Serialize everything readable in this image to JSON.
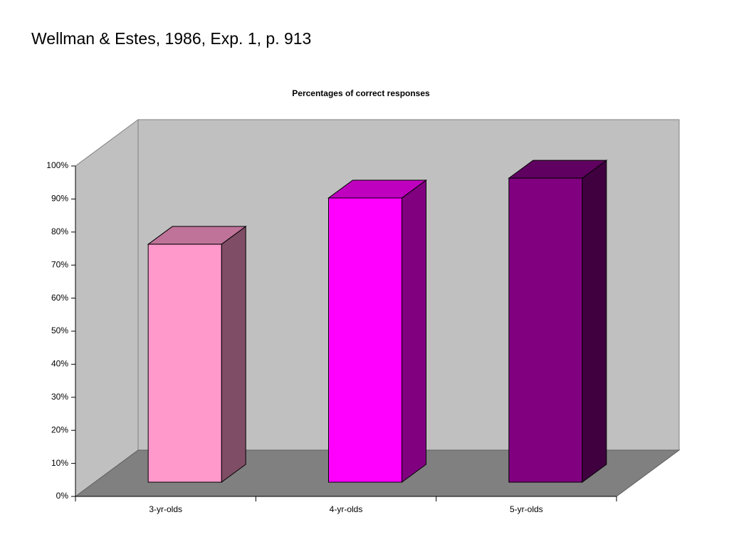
{
  "slide_title": "Wellman & Estes, 1986, Exp. 1, p. 913",
  "chart_data": {
    "type": "bar3d",
    "title": "Percentages of correct responses",
    "categories": [
      "3-yr-olds",
      "4-yr-olds",
      "5-yr-olds"
    ],
    "values": [
      72,
      86,
      92
    ],
    "colors": [
      "#ff99cc",
      "#ff00ff",
      "#800080"
    ],
    "ylim": [
      0,
      100
    ],
    "yticks": [
      {
        "value": 0,
        "label": "0%"
      },
      {
        "value": 10,
        "label": "10%"
      },
      {
        "value": 20,
        "label": "20%"
      },
      {
        "value": 30,
        "label": "30%"
      },
      {
        "value": 40,
        "label": "40%"
      },
      {
        "value": 50,
        "label": "50%"
      },
      {
        "value": 60,
        "label": "60%"
      },
      {
        "value": 70,
        "label": "70%"
      },
      {
        "value": 80,
        "label": "80%"
      },
      {
        "value": 90,
        "label": "90%"
      },
      {
        "value": 100,
        "label": "100%"
      }
    ],
    "grid": false
  }
}
